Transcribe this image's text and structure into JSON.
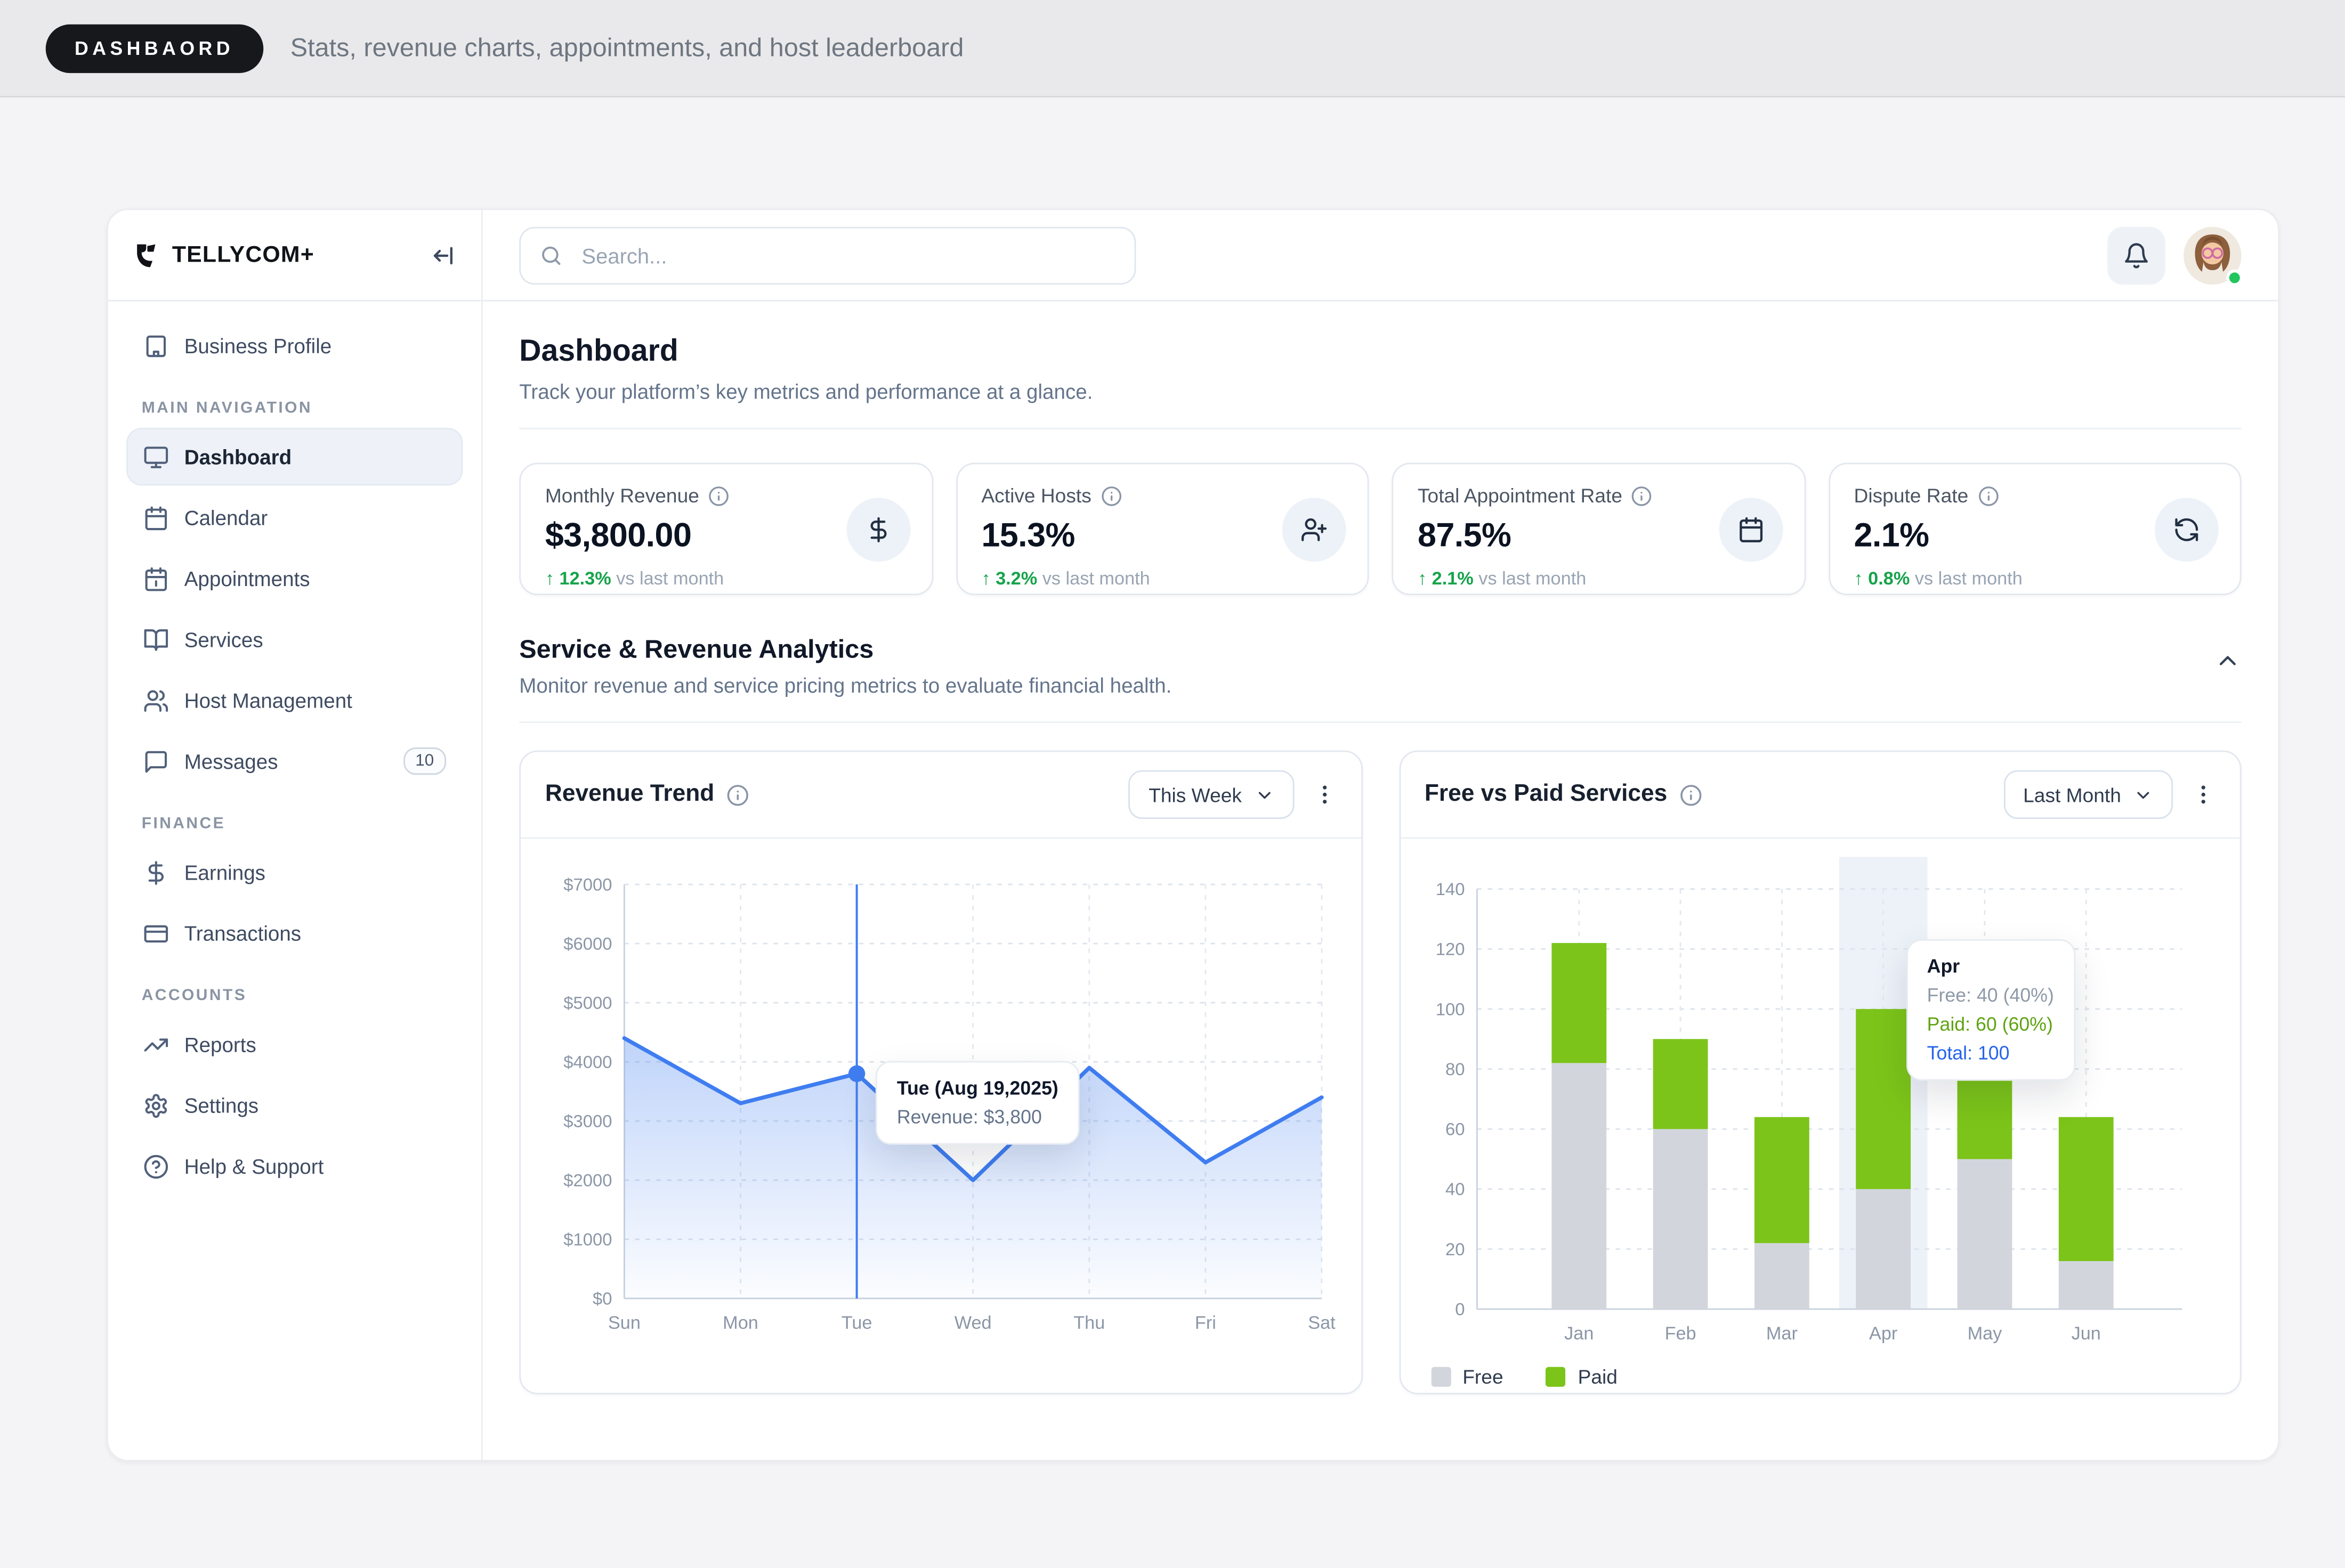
{
  "topbar": {
    "badge": "DASHBAORD",
    "description": "Stats, revenue charts, appointments, and host leaderboard"
  },
  "sidebar": {
    "brand": "TELLYCOM+",
    "top_item": {
      "label": "Business Profile"
    },
    "sections": [
      {
        "label": "MAIN NAVIGATION",
        "items": [
          {
            "label": "Dashboard",
            "active": true
          },
          {
            "label": "Calendar"
          },
          {
            "label": "Appointments"
          },
          {
            "label": "Services"
          },
          {
            "label": "Host Management"
          },
          {
            "label": "Messages",
            "badge": "10"
          }
        ]
      },
      {
        "label": "FINANCE",
        "items": [
          {
            "label": "Earnings"
          },
          {
            "label": "Transactions"
          }
        ]
      },
      {
        "label": "ACCOUNTS",
        "items": [
          {
            "label": "Reports"
          },
          {
            "label": "Settings"
          },
          {
            "label": "Help & Support"
          }
        ]
      }
    ]
  },
  "header": {
    "search_placeholder": "Search..."
  },
  "page": {
    "title": "Dashboard",
    "subtitle": "Track your platform’s key metrics and performance at a glance."
  },
  "stats": [
    {
      "label": "Monthly Revenue",
      "value": "$3,800.00",
      "delta": "↑ 12.3%",
      "suffix": " vs last month"
    },
    {
      "label": "Active Hosts",
      "value": "15.3%",
      "delta": "↑ 3.2%",
      "suffix": " vs last month"
    },
    {
      "label": "Total Appointment Rate",
      "value": "87.5%",
      "delta": "↑ 2.1%",
      "suffix": " vs last month"
    },
    {
      "label": "Dispute Rate",
      "value": "2.1%",
      "delta": "↑ 0.8%",
      "suffix": " vs last month"
    }
  ],
  "section": {
    "title": "Service & Revenue Analytics",
    "subtitle": "Monitor revenue and service pricing metrics to evaluate financial health."
  },
  "charts": {
    "revenue": {
      "title": "Revenue Trend",
      "range": "This Week"
    },
    "freepaid": {
      "title": "Free vs Paid Services",
      "range": "Last Month"
    }
  },
  "icons": [
    "search-icon",
    "bell-icon",
    "building-icon",
    "monitor-icon",
    "calendar-icon",
    "calendar-appointment-icon",
    "book-open-icon",
    "users-icon",
    "message-icon",
    "dollar-icon",
    "credit-card-icon",
    "trending-up-icon",
    "gear-icon",
    "help-circle-icon",
    "info-icon",
    "chevron-down-icon",
    "chevron-up-icon",
    "kebab-menu-icon",
    "collapse-sidebar-icon",
    "user-plus-icon",
    "refresh-icon",
    "logo-icon"
  ],
  "colors": {
    "accent_blue": "#3f7df0",
    "paid_green": "#7cc41a",
    "free_gray": "#d2d6dc",
    "delta_green": "#16a34a",
    "highlight_band": "#edf1f8"
  },
  "chart_data": [
    {
      "type": "line",
      "title": "Revenue Trend",
      "x": [
        "Sun",
        "Mon",
        "Tue",
        "Wed",
        "Thu",
        "Fri",
        "Sat"
      ],
      "values": [
        4400,
        3300,
        3800,
        2000,
        3900,
        2300,
        3400
      ],
      "ylim": [
        0,
        7000
      ],
      "ylabel_ticks": [
        "$0",
        "$1000",
        "$2000",
        "$3000",
        "$4000",
        "$5000",
        "$6000",
        "$7000"
      ],
      "grid": "dashed",
      "line_color": "#3f7df0",
      "selected": {
        "index": 2,
        "label": "Tue (Aug 19,2025)",
        "value_line": "Revenue: $3,800"
      }
    },
    {
      "type": "bar",
      "stacked": true,
      "title": "Free vs Paid Services",
      "categories": [
        "Jan",
        "Feb",
        "Mar",
        "Apr",
        "May",
        "Jun"
      ],
      "series": [
        {
          "name": "Free",
          "color": "#d2d6dc",
          "values": [
            82,
            60,
            22,
            40,
            50,
            16
          ]
        },
        {
          "name": "Paid",
          "color": "#7cc41a",
          "values": [
            40,
            30,
            42,
            60,
            30,
            48
          ]
        }
      ],
      "ylim": [
        0,
        140
      ],
      "yticks": [
        0,
        20,
        40,
        60,
        80,
        100,
        120,
        140
      ],
      "grid": "dashed",
      "legend_position": "bottom-left",
      "highlight_index": 3,
      "tooltip": {
        "title": "Apr",
        "rows": [
          {
            "text": "Free: 40 (40%)",
            "color": "#8e99a8"
          },
          {
            "text": "Paid: 60 (60%)",
            "color": "#5fa312"
          },
          {
            "text": "Total: 100",
            "color": "#2563eb"
          }
        ]
      }
    }
  ]
}
